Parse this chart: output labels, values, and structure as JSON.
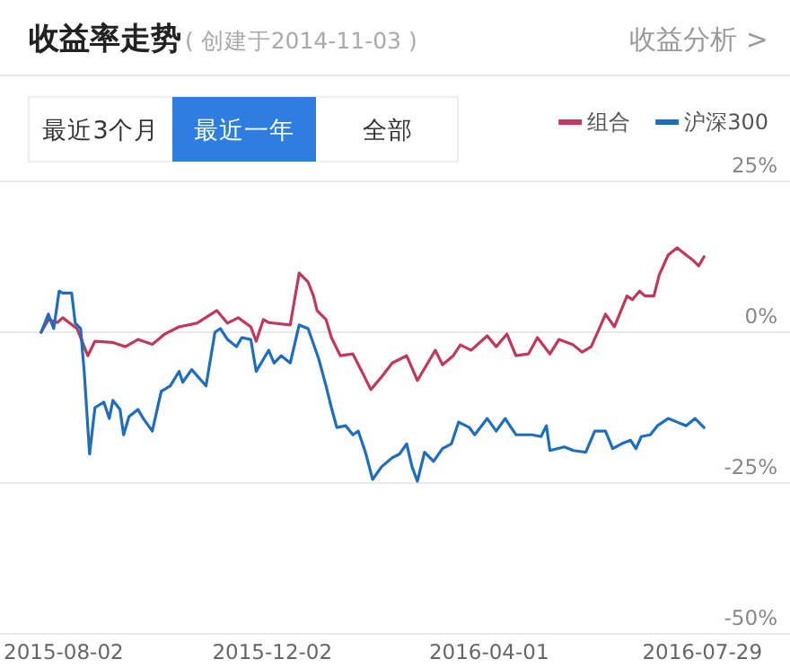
{
  "chart_data": {
    "type": "line",
    "title": "收益率走势",
    "subtitle": "( 创建于2014-11-03 )",
    "annotations": [
      "收益分析 >",
      "最近3个月",
      "最近一年",
      "全部"
    ],
    "legend": "top right",
    "grid": "y",
    "xlim": [
      "2015-07-03",
      "2016-09-16"
    ],
    "xticks": [
      "2015-08-02",
      "2015-12-02",
      "2016-04-01",
      "2016-07-29"
    ],
    "ylim": [
      -50,
      25
    ],
    "yticks": [
      {
        "value": 25,
        "label": "25%"
      },
      {
        "value": 0,
        "label": "0%"
      },
      {
        "value": -25,
        "label": "-25%"
      },
      {
        "value": -50,
        "label": "-50%"
      }
    ],
    "series": [
      {
        "name": "组合",
        "color": "#c0395a",
        "x": [
          "2015-07-26",
          "2015-07-30",
          "2015-08-04",
          "2015-08-07",
          "2015-08-15",
          "2015-08-21",
          "2015-08-25",
          "2015-09-04",
          "2015-09-11",
          "2015-09-18",
          "2015-09-26",
          "2015-10-03",
          "2015-10-11",
          "2015-10-21",
          "2015-11-01",
          "2015-11-07",
          "2015-11-13",
          "2015-11-20",
          "2015-11-23",
          "2015-11-27",
          "2015-11-30",
          "2015-12-12",
          "2015-12-17",
          "2015-12-22",
          "2015-12-25",
          "2015-12-27",
          "2016-01-01",
          "2016-01-04",
          "2016-01-09",
          "2016-01-16",
          "2016-01-21",
          "2016-01-26",
          "2016-02-01",
          "2016-02-07",
          "2016-02-15",
          "2016-02-21",
          "2016-02-28",
          "2016-03-02",
          "2016-03-06",
          "2016-03-12",
          "2016-03-16",
          "2016-03-22",
          "2016-03-31",
          "2016-04-05",
          "2016-04-11",
          "2016-04-16",
          "2016-04-23",
          "2016-04-28",
          "2016-05-05",
          "2016-05-10",
          "2016-05-18",
          "2016-05-23",
          "2016-05-28",
          "2016-06-02",
          "2016-06-05",
          "2016-06-10",
          "2016-06-17",
          "2016-06-20",
          "2016-06-24",
          "2016-06-27",
          "2016-07-02",
          "2016-07-05",
          "2016-07-10",
          "2016-07-15",
          "2016-07-20",
          "2016-07-24",
          "2016-07-27",
          "2016-07-30"
        ],
        "values": [
          0,
          2.1,
          1.6,
          2.4,
          0.6,
          -3.9,
          -1.5,
          -1.7,
          -2.4,
          -1.2,
          -2.0,
          -0.3,
          0.9,
          1.5,
          3.6,
          1.5,
          2.4,
          0.9,
          -1.5,
          2.1,
          1.6,
          1.2,
          9.8,
          8.3,
          6.0,
          3.6,
          2.1,
          -0.9,
          -3.9,
          -3.6,
          -6.5,
          -9.5,
          -7.4,
          -5.1,
          -3.9,
          -8.0,
          -4.5,
          -3.0,
          -5.4,
          -3.9,
          -2.1,
          -3.0,
          -0.6,
          -2.4,
          -0.3,
          -3.9,
          -3.6,
          -0.9,
          -3.6,
          -1.2,
          -2.1,
          -3.3,
          -2.4,
          0.9,
          3.0,
          0.9,
          6.0,
          5.4,
          6.8,
          6.0,
          6.0,
          9.5,
          12.8,
          14.0,
          12.8,
          11.9,
          11.0,
          12.5
        ]
      },
      {
        "name": "沪深300",
        "color": "#1f6dbd",
        "x": [
          "2015-07-26",
          "2015-07-30",
          "2015-08-02",
          "2015-08-05",
          "2015-08-07",
          "2015-08-12",
          "2015-08-14",
          "2015-08-17",
          "2015-08-19",
          "2015-08-22",
          "2015-08-25",
          "2015-08-30",
          "2015-09-02",
          "2015-09-04",
          "2015-09-08",
          "2015-09-10",
          "2015-09-13",
          "2015-09-18",
          "2015-09-21",
          "2015-09-26",
          "2015-10-01",
          "2015-10-06",
          "2015-10-11",
          "2015-10-13",
          "2015-10-18",
          "2015-10-26",
          "2015-10-31",
          "2015-11-03",
          "2015-11-07",
          "2015-11-12",
          "2015-11-15",
          "2015-11-20",
          "2015-11-23",
          "2015-11-27",
          "2015-11-30",
          "2015-12-03",
          "2015-12-07",
          "2015-12-12",
          "2015-12-17",
          "2015-12-22",
          "2015-12-28",
          "2016-01-01",
          "2016-01-04",
          "2016-01-07",
          "2016-01-12",
          "2016-01-16",
          "2016-01-19",
          "2016-01-23",
          "2016-01-27",
          "2016-02-01",
          "2016-02-07",
          "2016-02-11",
          "2016-02-15",
          "2016-02-18",
          "2016-02-21",
          "2016-02-25",
          "2016-03-01",
          "2016-03-06",
          "2016-03-11",
          "2016-03-15",
          "2016-03-21",
          "2016-03-24",
          "2016-03-31",
          "2016-04-05",
          "2016-04-10",
          "2016-04-16",
          "2016-04-25",
          "2016-04-30",
          "2016-05-03",
          "2016-05-05",
          "2016-05-13",
          "2016-05-18",
          "2016-05-25",
          "2016-05-30",
          "2016-06-05",
          "2016-06-09",
          "2016-06-14",
          "2016-06-19",
          "2016-06-22",
          "2016-06-25",
          "2016-06-30",
          "2016-07-04",
          "2016-07-10",
          "2016-07-15",
          "2016-07-20",
          "2016-07-25",
          "2016-07-30"
        ],
        "values": [
          0,
          3.0,
          0.6,
          6.8,
          6.5,
          6.5,
          1.5,
          0.6,
          -6.5,
          -20.2,
          -12.5,
          -11.6,
          -14.3,
          -11.3,
          -12.8,
          -17.0,
          -14.0,
          -12.8,
          -14.3,
          -16.4,
          -9.8,
          -8.9,
          -6.5,
          -8.3,
          -6.2,
          -8.9,
          0.0,
          0.6,
          -1.2,
          -2.4,
          -0.9,
          -1.2,
          -6.5,
          -4.5,
          -3.0,
          -5.1,
          -3.9,
          -5.1,
          1.2,
          0.6,
          -4.5,
          -8.9,
          -12.5,
          -15.8,
          -15.5,
          -17.0,
          -16.4,
          -19.9,
          -24.4,
          -22.3,
          -20.8,
          -20.2,
          -18.5,
          -22.3,
          -24.7,
          -19.9,
          -21.4,
          -19.3,
          -18.5,
          -14.9,
          -15.8,
          -17.0,
          -14.3,
          -16.4,
          -14.3,
          -17.0,
          -17.0,
          -17.3,
          -15.5,
          -19.6,
          -19.0,
          -19.6,
          -19.9,
          -16.4,
          -16.4,
          -19.3,
          -18.5,
          -17.9,
          -19.3,
          -17.3,
          -17.0,
          -15.5,
          -14.3,
          -14.9,
          -15.5,
          -14.3,
          -15.8
        ]
      }
    ]
  }
}
